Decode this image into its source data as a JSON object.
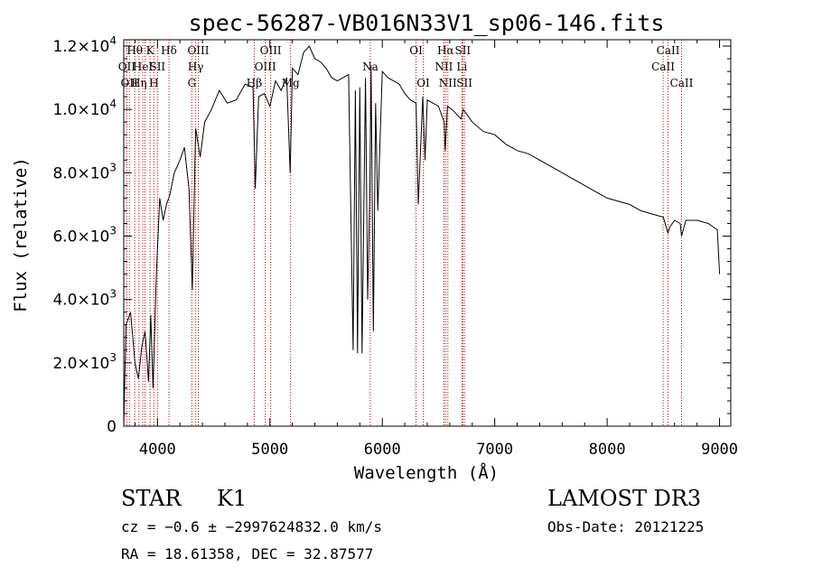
{
  "chart_data": {
    "type": "line",
    "title": "spec-56287-VB016N33V1_sp06-146.fits",
    "xlabel": "Wavelength (Å)",
    "ylabel": "Flux (relative)",
    "xlim": [
      3700,
      9100
    ],
    "ylim": [
      0,
      12200
    ],
    "x_ticks": [
      4000,
      5000,
      6000,
      7000,
      8000,
      9000
    ],
    "x_tick_labels": [
      "4000",
      "5000",
      "6000",
      "7000",
      "8000",
      "9000"
    ],
    "y_ticks": [
      0,
      2000,
      4000,
      6000,
      8000,
      10000,
      12000
    ],
    "y_tick_labels": [
      {
        "m": "0",
        "e": ""
      },
      {
        "m": "2.0×10",
        "e": "3"
      },
      {
        "m": "4.0×10",
        "e": "3"
      },
      {
        "m": "6.0×10",
        "e": "3"
      },
      {
        "m": "8.0×10",
        "e": "3"
      },
      {
        "m": "1.0×10",
        "e": "4"
      },
      {
        "m": "1.2×10",
        "e": "4"
      }
    ],
    "grid": false,
    "line_color": "#000000",
    "marker_line_color": "#cc0000",
    "series": [
      {
        "name": "flux",
        "x": [
          3700,
          3720,
          3740,
          3760,
          3780,
          3800,
          3830,
          3860,
          3890,
          3920,
          3940,
          3960,
          3990,
          4020,
          4050,
          4080,
          4110,
          4150,
          4200,
          4240,
          4280,
          4310,
          4340,
          4380,
          4420,
          4480,
          4550,
          4620,
          4700,
          4780,
          4850,
          4870,
          4900,
          4950,
          5000,
          5050,
          5100,
          5150,
          5180,
          5200,
          5250,
          5300,
          5350,
          5400,
          5450,
          5500,
          5550,
          5600,
          5650,
          5700,
          5740,
          5760,
          5780,
          5800,
          5820,
          5850,
          5870,
          5890,
          5900,
          5920,
          5940,
          5960,
          6000,
          6050,
          6100,
          6150,
          6200,
          6250,
          6300,
          6320,
          6360,
          6380,
          6400,
          6450,
          6500,
          6550,
          6560,
          6580,
          6620,
          6700,
          6720,
          6800,
          6900,
          7000,
          7100,
          7200,
          7300,
          7400,
          7500,
          7600,
          7700,
          7800,
          7900,
          8000,
          8100,
          8200,
          8300,
          8400,
          8500,
          8540,
          8560,
          8600,
          8650,
          8662,
          8700,
          8800,
          8900,
          8980,
          9000
        ],
        "y": [
          0,
          3200,
          3400,
          3600,
          2800,
          2000,
          1500,
          2500,
          3000,
          1400,
          3500,
          1200,
          4800,
          7200,
          6500,
          7000,
          7300,
          8000,
          8400,
          8800,
          7500,
          4300,
          9400,
          8500,
          9600,
          10000,
          10600,
          10200,
          10300,
          10800,
          10700,
          7500,
          10400,
          10500,
          10100,
          10900,
          10600,
          11000,
          8000,
          11300,
          11100,
          11800,
          12000,
          11600,
          11500,
          11300,
          11000,
          10900,
          11000,
          11100,
          2400,
          10600,
          2300,
          10700,
          2300,
          11000,
          4000,
          7500,
          11400,
          3000,
          10200,
          6800,
          11200,
          11000,
          10900,
          10800,
          10500,
          10300,
          10200,
          7000,
          10400,
          8400,
          10300,
          10200,
          10100,
          9600,
          8700,
          10100,
          10000,
          9700,
          10000,
          9600,
          9300,
          9200,
          8900,
          8700,
          8600,
          8400,
          8200,
          8000,
          7800,
          7600,
          7400,
          7200,
          7100,
          7000,
          6800,
          6700,
          6600,
          6100,
          6300,
          6500,
          6400,
          6000,
          6500,
          6500,
          6400,
          6200,
          4800
        ]
      }
    ],
    "line_markers": [
      {
        "wl": 3727,
        "label": "OII",
        "row": 2
      },
      {
        "wl": 3750,
        "label": "OII",
        "row": 3
      },
      {
        "wl": 3798,
        "label": "Hθ",
        "row": 1
      },
      {
        "wl": 3835,
        "label": "Hη",
        "row": 3
      },
      {
        "wl": 3869,
        "label": "HeI",
        "row": 2
      },
      {
        "wl": 3889,
        "label": "",
        "row": 0
      },
      {
        "wl": 3934,
        "label": "K",
        "row": 1
      },
      {
        "wl": 3968,
        "label": "H",
        "row": 3
      },
      {
        "wl": 4000,
        "label": "SII",
        "row": 2
      },
      {
        "wl": 4102,
        "label": "Hδ",
        "row": 1
      },
      {
        "wl": 4306,
        "label": "G",
        "row": 3
      },
      {
        "wl": 4340,
        "label": "Hγ",
        "row": 2
      },
      {
        "wl": 4363,
        "label": "OIII",
        "row": 1
      },
      {
        "wl": 4861,
        "label": "Hβ",
        "row": 3
      },
      {
        "wl": 4959,
        "label": "OIII",
        "row": 2
      },
      {
        "wl": 5007,
        "label": "OIII",
        "row": 1
      },
      {
        "wl": 5184,
        "label": "Mg",
        "row": 3
      },
      {
        "wl": 5893,
        "label": "Na",
        "row": 2
      },
      {
        "wl": 6300,
        "label": "OI",
        "row": 1
      },
      {
        "wl": 6364,
        "label": "OI",
        "row": 3
      },
      {
        "wl": 6548,
        "label": "NII",
        "row": 2
      },
      {
        "wl": 6563,
        "label": "Hα",
        "row": 1
      },
      {
        "wl": 6583,
        "label": "NII",
        "row": 3
      },
      {
        "wl": 6708,
        "label": "Li",
        "row": 2
      },
      {
        "wl": 6716,
        "label": "SII",
        "row": 1
      },
      {
        "wl": 6731,
        "label": "SII",
        "row": 3
      },
      {
        "wl": 8498,
        "label": "CaII",
        "row": 2
      },
      {
        "wl": 8542,
        "label": "CaII",
        "row": 1
      },
      {
        "wl": 8662,
        "label": "CaII",
        "row": 3
      }
    ]
  },
  "info": {
    "class": "STAR",
    "subclass": "K1",
    "survey": "LAMOST DR3",
    "cz_line": "cz = −0.6 ± −2997624832.0 km/s",
    "obs_date": "Obs-Date: 20121225",
    "radec": "RA =  18.61358, DEC =  32.87577"
  }
}
